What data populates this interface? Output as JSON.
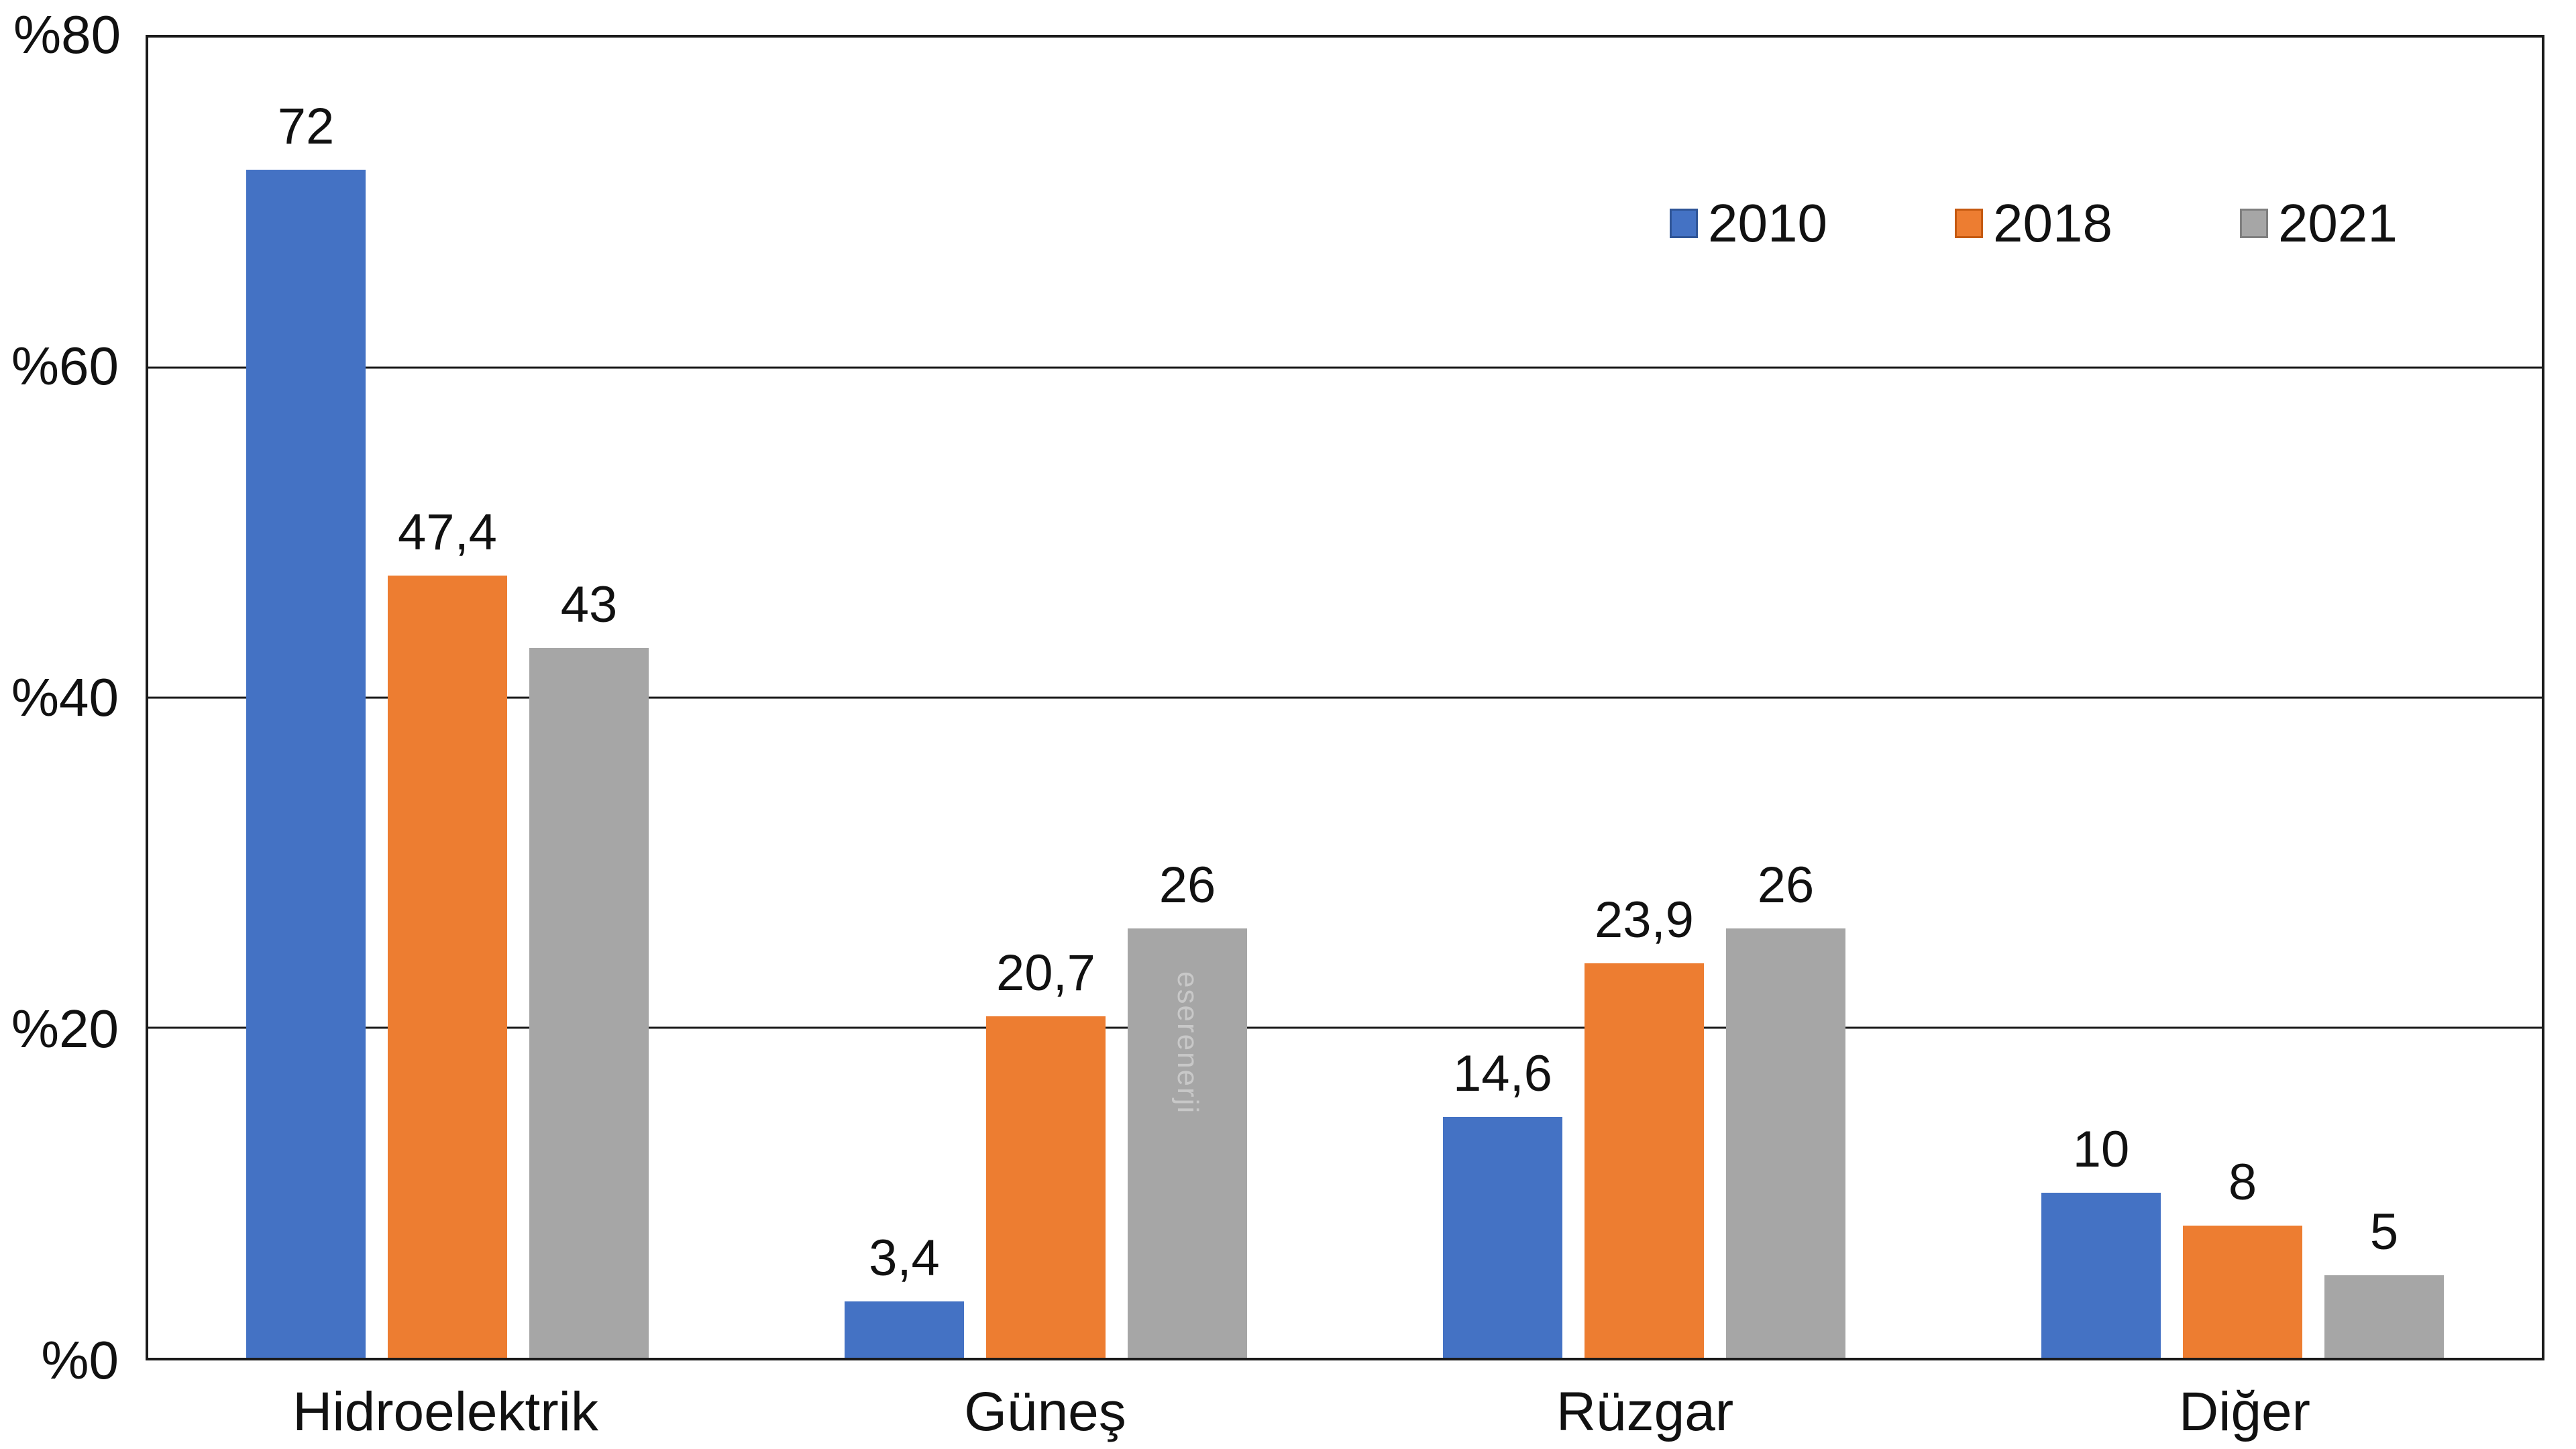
{
  "chart_data": {
    "type": "bar",
    "title": "",
    "categories": [
      "Hidroelektrik",
      "Güneş",
      "Rüzgar",
      "Diğer"
    ],
    "series": [
      {
        "name": "2010",
        "color": "#4472C4",
        "border": "#2F5597",
        "values": [
          72,
          3.4,
          14.6,
          10
        ],
        "labels": [
          "72",
          "3,4",
          "14,6",
          "10"
        ]
      },
      {
        "name": "2018",
        "color": "#ED7D31",
        "border": "#C55A11",
        "values": [
          47.4,
          20.7,
          23.9,
          8
        ],
        "labels": [
          "47,4",
          "20,7",
          "23,9",
          "8"
        ]
      },
      {
        "name": "2021",
        "color": "#A6A6A6",
        "border": "#7F7F7F",
        "values": [
          43,
          26,
          26,
          5
        ],
        "labels": [
          "43",
          "26",
          "26",
          "5"
        ]
      }
    ],
    "y_axis": {
      "unit": "%",
      "min": 0,
      "max": 80,
      "step": 20,
      "ticks": [
        "%80",
        "%60",
        "%40",
        "%20",
        "%0"
      ]
    },
    "grid": true,
    "legend_position": "top-right-inside",
    "watermark": "eserenerji"
  },
  "colors": {
    "background": "#ffffff",
    "axis_line": "#1a1a1a",
    "text": "#111111"
  }
}
